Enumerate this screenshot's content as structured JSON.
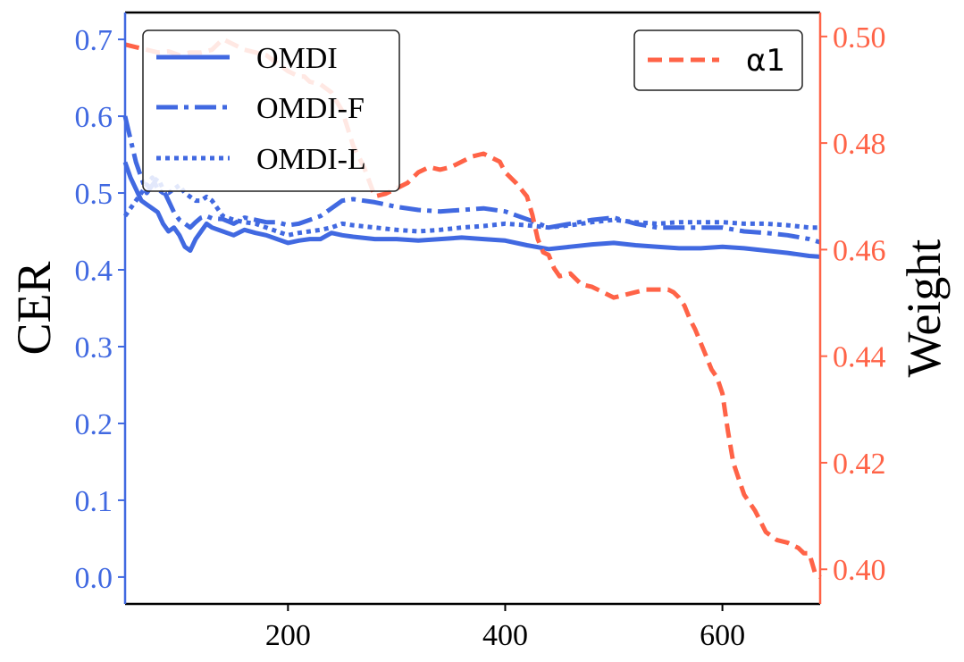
{
  "chart_data": {
    "type": "line",
    "x_ticks": [
      200,
      400,
      600
    ],
    "xlim": [
      50,
      690
    ],
    "left_axis": {
      "label": "CER",
      "color": "#4169E1",
      "ylim": [
        -0.035,
        0.735
      ],
      "ticks": [
        "0.0",
        "0.1",
        "0.2",
        "0.3",
        "0.4",
        "0.5",
        "0.6",
        "0.7"
      ]
    },
    "right_axis": {
      "label": "Weight",
      "color": "#FF6347",
      "ylim": [
        0.3935,
        0.5045
      ],
      "ticks": [
        "0.40",
        "0.42",
        "0.44",
        "0.46",
        "0.48",
        "0.50"
      ]
    },
    "series": [
      {
        "name": "OMDI",
        "axis": "left",
        "style": "solid",
        "color": "#4169E1",
        "x": [
          50,
          55,
          60,
          65,
          70,
          75,
          80,
          85,
          90,
          95,
          100,
          105,
          110,
          115,
          120,
          125,
          130,
          140,
          150,
          160,
          170,
          180,
          190,
          200,
          210,
          220,
          230,
          240,
          250,
          260,
          280,
          300,
          320,
          340,
          360,
          380,
          400,
          420,
          440,
          460,
          480,
          500,
          520,
          540,
          560,
          580,
          600,
          620,
          640,
          660,
          680,
          690
        ],
        "y": [
          0.54,
          0.52,
          0.505,
          0.49,
          0.485,
          0.48,
          0.475,
          0.46,
          0.45,
          0.455,
          0.445,
          0.43,
          0.425,
          0.44,
          0.45,
          0.46,
          0.455,
          0.45,
          0.445,
          0.452,
          0.448,
          0.445,
          0.44,
          0.435,
          0.438,
          0.44,
          0.44,
          0.448,
          0.445,
          0.443,
          0.44,
          0.44,
          0.438,
          0.44,
          0.442,
          0.44,
          0.438,
          0.432,
          0.427,
          0.43,
          0.433,
          0.435,
          0.432,
          0.43,
          0.428,
          0.428,
          0.43,
          0.428,
          0.425,
          0.422,
          0.418,
          0.417
        ]
      },
      {
        "name": "OMDI-F",
        "axis": "left",
        "style": "dashdot",
        "color": "#4169E1",
        "x": [
          50,
          55,
          60,
          65,
          70,
          75,
          80,
          85,
          90,
          95,
          100,
          105,
          110,
          115,
          120,
          125,
          130,
          140,
          150,
          160,
          170,
          180,
          190,
          200,
          210,
          220,
          230,
          240,
          250,
          260,
          280,
          300,
          320,
          340,
          360,
          380,
          400,
          420,
          440,
          460,
          480,
          500,
          520,
          540,
          560,
          580,
          600,
          620,
          640,
          660,
          680,
          690
        ],
        "y": [
          0.6,
          0.57,
          0.54,
          0.52,
          0.5,
          0.51,
          0.52,
          0.505,
          0.49,
          0.475,
          0.465,
          0.46,
          0.455,
          0.462,
          0.468,
          0.47,
          0.467,
          0.466,
          0.46,
          0.468,
          0.465,
          0.462,
          0.462,
          0.458,
          0.46,
          0.465,
          0.47,
          0.48,
          0.49,
          0.492,
          0.488,
          0.482,
          0.478,
          0.476,
          0.478,
          0.48,
          0.476,
          0.466,
          0.455,
          0.46,
          0.465,
          0.468,
          0.46,
          0.455,
          0.455,
          0.455,
          0.455,
          0.45,
          0.448,
          0.445,
          0.44,
          0.436
        ]
      },
      {
        "name": "OMDI-L",
        "axis": "left",
        "style": "dotted",
        "color": "#4169E1",
        "x": [
          50,
          55,
          60,
          65,
          70,
          75,
          80,
          85,
          90,
          95,
          100,
          105,
          110,
          115,
          120,
          125,
          130,
          140,
          150,
          160,
          170,
          180,
          190,
          200,
          210,
          220,
          230,
          240,
          250,
          260,
          280,
          300,
          320,
          340,
          360,
          380,
          400,
          420,
          440,
          460,
          480,
          500,
          520,
          540,
          560,
          580,
          600,
          620,
          640,
          660,
          680,
          690
        ],
        "y": [
          0.47,
          0.48,
          0.49,
          0.5,
          0.51,
          0.52,
          0.505,
          0.5,
          0.5,
          0.505,
          0.51,
          0.5,
          0.495,
          0.49,
          0.49,
          0.495,
          0.49,
          0.47,
          0.465,
          0.462,
          0.46,
          0.455,
          0.45,
          0.445,
          0.448,
          0.45,
          0.452,
          0.455,
          0.46,
          0.458,
          0.455,
          0.452,
          0.45,
          0.452,
          0.455,
          0.457,
          0.46,
          0.458,
          0.455,
          0.458,
          0.462,
          0.465,
          0.462,
          0.46,
          0.462,
          0.462,
          0.462,
          0.46,
          0.46,
          0.458,
          0.455,
          0.455
        ]
      },
      {
        "name": "α1",
        "axis": "right",
        "style": "dashed",
        "color": "#FF6347",
        "x": [
          50,
          60,
          70,
          80,
          90,
          100,
          110,
          120,
          130,
          140,
          150,
          160,
          170,
          180,
          190,
          200,
          210,
          215,
          220,
          230,
          240,
          250,
          260,
          270,
          280,
          290,
          300,
          310,
          320,
          330,
          340,
          350,
          360,
          370,
          380,
          390,
          395,
          400,
          410,
          420,
          425,
          430,
          435,
          440,
          445,
          450,
          460,
          465,
          470,
          480,
          490,
          500,
          510,
          520,
          530,
          540,
          550,
          555,
          560,
          565,
          570,
          575,
          580,
          585,
          590,
          595,
          600,
          605,
          610,
          615,
          620,
          630,
          640,
          650,
          660,
          670,
          675,
          680,
          685,
          690
        ],
        "y": [
          0.4985,
          0.498,
          0.4975,
          0.497,
          0.4972,
          0.4965,
          0.497,
          0.497,
          0.4975,
          0.4995,
          0.4985,
          0.4975,
          0.497,
          0.4965,
          0.495,
          0.4935,
          0.4925,
          0.4925,
          0.4915,
          0.491,
          0.4895,
          0.486,
          0.4795,
          0.4755,
          0.47,
          0.4705,
          0.4715,
          0.4725,
          0.4745,
          0.4755,
          0.475,
          0.4755,
          0.4765,
          0.4775,
          0.478,
          0.477,
          0.4765,
          0.4745,
          0.4725,
          0.47,
          0.4665,
          0.462,
          0.4595,
          0.459,
          0.4565,
          0.455,
          0.4555,
          0.4545,
          0.4535,
          0.453,
          0.452,
          0.451,
          0.4515,
          0.452,
          0.4525,
          0.4525,
          0.4525,
          0.452,
          0.451,
          0.4495,
          0.447,
          0.445,
          0.4425,
          0.44,
          0.4375,
          0.436,
          0.433,
          0.426,
          0.42,
          0.417,
          0.414,
          0.411,
          0.407,
          0.4055,
          0.405,
          0.404,
          0.403,
          0.403,
          0.3995,
          0.3985
        ]
      }
    ],
    "legends": [
      {
        "position": "upper-left",
        "entries": [
          "OMDI",
          "OMDI-F",
          "OMDI-L"
        ]
      },
      {
        "position": "upper-right",
        "entries": [
          "α1"
        ]
      }
    ]
  }
}
